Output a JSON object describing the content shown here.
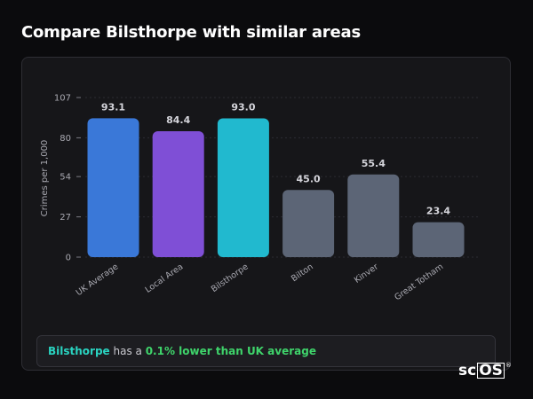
{
  "page": {
    "title": "Compare Bilsthorpe with similar areas"
  },
  "summary": {
    "area": "Bilsthorpe",
    "middle": " has a ",
    "comparison": "0.1% lower than UK average"
  },
  "logo": {
    "prefix": "sc",
    "boxed": "OS",
    "mark": "®"
  },
  "chart_data": {
    "type": "bar",
    "categories": [
      "UK Average",
      "Local Area",
      "Bilsthorpe",
      "Bilton",
      "Kinver",
      "Great Totham"
    ],
    "values": [
      93.1,
      84.4,
      93.0,
      45.0,
      55.4,
      23.4
    ],
    "value_labels": [
      "93.1",
      "84.4",
      "93.0",
      "45.0",
      "55.4",
      "23.4"
    ],
    "colors": [
      "#3a78d8",
      "#7f4fd6",
      "#21b9cf",
      "#5c6576",
      "#5c6576",
      "#5c6576"
    ],
    "ylabel": "Crimes per 1,000",
    "yticks": [
      0,
      27,
      54,
      80,
      107
    ],
    "ylim": [
      0,
      107
    ],
    "grid": "dotted horizontal"
  }
}
